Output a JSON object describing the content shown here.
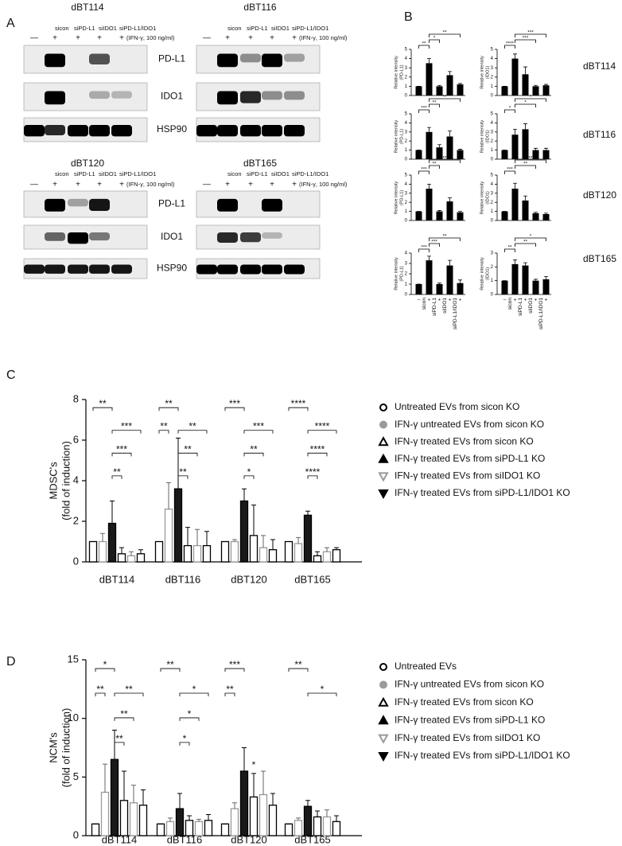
{
  "panel_a": {
    "label": "A",
    "ifn_label": "(IFN-γ, 100 ng/ml)",
    "rows": [
      {
        "proteins": [
          "PD-L1",
          "IDO1",
          "HSP90"
        ],
        "groups": [
          {
            "title": "dBT114",
            "lanes": [
              "sicon",
              "siPD-L1",
              "siIDO1",
              "siPD-L1/IDO1"
            ],
            "treatment": [
              "—",
              "+",
              "+",
              "+",
              "+"
            ]
          },
          {
            "title": "dBT116",
            "lanes": [
              "sicon",
              "siPD-L1",
              "siIDO1",
              "siPD-L1/IDO1"
            ],
            "treatment": [
              "—",
              "+",
              "+",
              "+",
              "+"
            ]
          }
        ]
      },
      {
        "proteins": [
          "PD-L1",
          "IDO1",
          "HSP90"
        ],
        "groups": [
          {
            "title": "dBT120",
            "lanes": [
              "sicon",
              "siPD-L1",
              "siIDO1",
              "siPD-L1/IDO1"
            ],
            "treatment": [
              "—",
              "+",
              "+",
              "+",
              "+"
            ]
          },
          {
            "title": "dBT165",
            "lanes": [
              "sicon",
              "siPD-L1",
              "siIDO1",
              "siPD-L1/IDO1"
            ],
            "treatment": [
              "—",
              "+",
              "+",
              "+",
              "+"
            ]
          }
        ]
      }
    ]
  },
  "panel_b": {
    "label": "B",
    "rows": [
      "dBT114",
      "dBT116",
      "dBT120",
      "dBT165"
    ]
  },
  "chart_data": [
    {
      "type": "bar",
      "ylabel": [
        "Relative intensity",
        "(PD-L1)"
      ],
      "values": [
        1,
        3.5,
        1,
        2.2,
        1.2
      ],
      "errors": [
        0,
        0.5,
        0.1,
        0.4,
        0.1
      ],
      "ylim": [
        0,
        5
      ],
      "yticks": [
        0,
        1,
        2,
        3,
        4,
        5
      ],
      "color": "#000000",
      "brackets": [
        {
          "from": 1,
          "to": 4,
          "label": "**"
        },
        {
          "from": 1,
          "to": 2,
          "label": "*"
        },
        {
          "from": 0,
          "to": 1,
          "label": "**"
        }
      ]
    },
    {
      "type": "bar",
      "ylabel": [
        "Relative intensity",
        "(IDO1)"
      ],
      "values": [
        1,
        4,
        2.3,
        1,
        1.1
      ],
      "errors": [
        0,
        0.5,
        0.8,
        0.1,
        0.1
      ],
      "ylim": [
        0,
        5
      ],
      "yticks": [
        0,
        1,
        2,
        3,
        4,
        5
      ],
      "color": "#000000",
      "brackets": [
        {
          "from": 1,
          "to": 4,
          "label": "***"
        },
        {
          "from": 1,
          "to": 3,
          "label": "***"
        },
        {
          "from": 0,
          "to": 1,
          "label": "****"
        }
      ]
    },
    {
      "type": "bar",
      "ylabel": [
        "Relative intensity",
        "(PD-L1)"
      ],
      "values": [
        1,
        3,
        1.3,
        2.5,
        1
      ],
      "errors": [
        0,
        0.5,
        0.3,
        0.6,
        0.1
      ],
      "ylim": [
        0,
        5
      ],
      "yticks": [
        0,
        1,
        2,
        3,
        4,
        5
      ],
      "color": "#000000",
      "brackets": [
        {
          "from": 1,
          "to": 4,
          "label": "**"
        },
        {
          "from": 1,
          "to": 2,
          "label": "**"
        },
        {
          "from": 0,
          "to": 1,
          "label": "***"
        }
      ]
    },
    {
      "type": "bar",
      "ylabel": [
        "Relative intensity",
        "(IDO1)"
      ],
      "values": [
        1,
        2.7,
        3.3,
        1,
        1
      ],
      "errors": [
        0,
        0.6,
        0.6,
        0.2,
        0.2
      ],
      "ylim": [
        0,
        5
      ],
      "yticks": [
        0,
        1,
        2,
        3,
        4,
        5
      ],
      "color": "#000000",
      "brackets": [
        {
          "from": 1,
          "to": 4,
          "label": "*"
        },
        {
          "from": 1,
          "to": 3,
          "label": "*"
        },
        {
          "from": 0,
          "to": 1,
          "label": "*"
        }
      ]
    },
    {
      "type": "bar",
      "ylabel": [
        "Relative intensity",
        "(PD-L1)"
      ],
      "values": [
        1,
        3.5,
        1,
        2.1,
        0.9
      ],
      "errors": [
        0,
        0.5,
        0.1,
        0.4,
        0.1
      ],
      "ylim": [
        0,
        5
      ],
      "yticks": [
        0,
        1,
        2,
        3,
        4,
        5
      ],
      "color": "#000000",
      "brackets": [
        {
          "from": 1,
          "to": 4,
          "label": "**"
        },
        {
          "from": 1,
          "to": 2,
          "label": "**"
        },
        {
          "from": 0,
          "to": 1,
          "label": "***"
        }
      ]
    },
    {
      "type": "bar",
      "ylabel": [
        "Relative intensity",
        "(IDO1)"
      ],
      "values": [
        1,
        3.5,
        2.2,
        0.8,
        0.7
      ],
      "errors": [
        0,
        0.6,
        0.5,
        0.1,
        0.1
      ],
      "ylim": [
        0,
        5
      ],
      "yticks": [
        0,
        1,
        2,
        3,
        4,
        5
      ],
      "color": "#000000",
      "brackets": [
        {
          "from": 1,
          "to": 4,
          "label": "**"
        },
        {
          "from": 1,
          "to": 3,
          "label": "**"
        },
        {
          "from": 0,
          "to": 1,
          "label": "***"
        }
      ]
    },
    {
      "type": "bar",
      "ylabel": [
        "Relative intensity",
        "(PD-L1)"
      ],
      "categories": [
        null,
        "sicon",
        "siPD-L1",
        "siIDO1",
        "siPD-L1/IDO1"
      ],
      "treatment": [
        "–",
        "+",
        "+",
        "+",
        "+"
      ],
      "values": [
        1,
        3.3,
        1,
        2.8,
        1.1
      ],
      "errors": [
        0,
        0.4,
        0.1,
        0.5,
        0.3
      ],
      "ylim": [
        0,
        4
      ],
      "yticks": [
        0,
        1,
        2,
        3,
        4
      ],
      "color": "#000000",
      "brackets": [
        {
          "from": 1,
          "to": 4,
          "label": "**"
        },
        {
          "from": 1,
          "to": 2,
          "label": "***"
        },
        {
          "from": 0,
          "to": 1,
          "label": "***"
        }
      ]
    },
    {
      "type": "bar",
      "ylabel": [
        "Relative intensity",
        "(IDO1)"
      ],
      "categories": [
        null,
        "sicon",
        "siPD-L1",
        "siIDO1",
        "siPD-L1/IDO1"
      ],
      "treatment": [
        "–",
        "+",
        "+",
        "+",
        "+"
      ],
      "values": [
        1,
        2.2,
        2.1,
        1,
        1.1
      ],
      "errors": [
        0,
        0.3,
        0.2,
        0.1,
        0.2
      ],
      "ylim": [
        0,
        3
      ],
      "yticks": [
        0,
        1,
        2,
        3
      ],
      "color": "#000000",
      "brackets": [
        {
          "from": 1,
          "to": 4,
          "label": "*"
        },
        {
          "from": 1,
          "to": 3,
          "label": "**"
        },
        {
          "from": 0,
          "to": 1,
          "label": "**"
        }
      ]
    },
    {
      "type": "grouped-bar",
      "panel": "C",
      "ylabel": [
        "MDSC's",
        "(fold of induction)"
      ],
      "categories": [
        "dBT114",
        "dBT116",
        "dBT120",
        "dBT165"
      ],
      "ylim": [
        0,
        8
      ],
      "yticks": [
        0,
        2,
        4,
        6,
        8
      ],
      "series": [
        {
          "name": "Untreated EVs from sicon KO",
          "marker": "circle-open",
          "color": "#000000",
          "fill": "#ffffff",
          "values": [
            1,
            1,
            1,
            1
          ],
          "errors": [
            0,
            0,
            0,
            0
          ]
        },
        {
          "name": "IFN-γ untreated EVs from sicon KO",
          "marker": "circle",
          "color": "#9a9a9a",
          "fill": "#ffffff",
          "values": [
            1,
            2.6,
            1,
            0.9
          ],
          "errors": [
            0.4,
            1.3,
            0.1,
            0.3
          ]
        },
        {
          "name": "IFN-γ treated EVs from sicon KO",
          "marker": "triangle-open",
          "color": "#000000",
          "fill": "#1a1a1a",
          "values": [
            1.9,
            3.6,
            3,
            2.3
          ],
          "errors": [
            1.1,
            2.5,
            0.6,
            0.2
          ]
        },
        {
          "name": "IFN-γ treated EVs from siPD-L1 KO",
          "marker": "triangle",
          "color": "#000000",
          "fill": "#ffffff",
          "values": [
            0.4,
            0.8,
            1.3,
            0.3
          ],
          "errors": [
            0.3,
            0.9,
            1.5,
            0.2
          ]
        },
        {
          "name": "IFN-γ treated EVs from siIDO1 KO",
          "marker": "triangle-down-open",
          "color": "#9a9a9a",
          "fill": "#ffffff",
          "values": [
            0.3,
            0.8,
            0.7,
            0.5
          ],
          "errors": [
            0.2,
            0.8,
            0.6,
            0.2
          ]
        },
        {
          "name": "IFN-γ treated EVs from siPD-L1/IDO1 KO",
          "marker": "triangle-down",
          "color": "#000000",
          "fill": "#ffffff",
          "values": [
            0.4,
            0.8,
            0.6,
            0.6
          ],
          "errors": [
            0.2,
            0.7,
            0.5,
            0.1
          ]
        }
      ],
      "brackets": [
        {
          "group": 0,
          "from": 0,
          "to": 2,
          "label": "**"
        },
        {
          "group": 0,
          "from": 2,
          "to": 5,
          "label": "***"
        },
        {
          "group": 0,
          "from": 2,
          "to": 4,
          "label": "***"
        },
        {
          "group": 0,
          "from": 2,
          "to": 3,
          "label": "**"
        },
        {
          "group": 1,
          "from": 0,
          "to": 2,
          "label": "**"
        },
        {
          "group": 1,
          "from": 0,
          "to": 1,
          "label": "**"
        },
        {
          "group": 1,
          "from": 2,
          "to": 5,
          "label": "**"
        },
        {
          "group": 1,
          "from": 2,
          "to": 4,
          "label": "**"
        },
        {
          "group": 1,
          "from": 2,
          "to": 3,
          "label": "**"
        },
        {
          "group": 2,
          "from": 0,
          "to": 2,
          "label": "***"
        },
        {
          "group": 2,
          "from": 2,
          "to": 5,
          "label": "***"
        },
        {
          "group": 2,
          "from": 2,
          "to": 4,
          "label": "**"
        },
        {
          "group": 2,
          "from": 2,
          "to": 3,
          "label": "*"
        },
        {
          "group": 3,
          "from": 0,
          "to": 2,
          "label": "****"
        },
        {
          "group": 3,
          "from": 2,
          "to": 5,
          "label": "****"
        },
        {
          "group": 3,
          "from": 2,
          "to": 4,
          "label": "****"
        },
        {
          "group": 3,
          "from": 2,
          "to": 3,
          "label": "****"
        }
      ]
    },
    {
      "type": "grouped-bar",
      "panel": "D",
      "ylabel": [
        "NCM's",
        "(fold of induction)"
      ],
      "categories": [
        "dBT114",
        "dBT116",
        "dBT120",
        "dBT165"
      ],
      "ylim": [
        0,
        15
      ],
      "yticks": [
        0,
        5,
        10,
        15
      ],
      "series": [
        {
          "name": "Untreated EVs",
          "marker": "circle-open",
          "color": "#000000",
          "fill": "#ffffff",
          "values": [
            1,
            1,
            1,
            1
          ],
          "errors": [
            0,
            0,
            0,
            0
          ]
        },
        {
          "name": "IFN-γ untreated EVs from sicon KO",
          "marker": "circle",
          "color": "#9a9a9a",
          "fill": "#ffffff",
          "values": [
            3.7,
            1.2,
            2.3,
            1.3
          ],
          "errors": [
            2.4,
            0.3,
            0.5,
            0.2
          ]
        },
        {
          "name": "IFN-γ treated EVs from sicon KO",
          "marker": "triangle-open",
          "color": "#000000",
          "fill": "#1a1a1a",
          "values": [
            6.5,
            2.3,
            5.5,
            2.5
          ],
          "errors": [
            2.5,
            1.3,
            2,
            0.5
          ]
        },
        {
          "name": "IFN-γ treated EVs from siPD-L1 KO",
          "marker": "triangle",
          "color": "#000000",
          "fill": "#ffffff",
          "values": [
            3,
            1.3,
            3.3,
            1.6
          ],
          "errors": [
            2.5,
            0.4,
            2,
            0.5
          ]
        },
        {
          "name": "IFN-γ treated EVs from siIDO1 KO",
          "marker": "triangle-down-open",
          "color": "#9a9a9a",
          "fill": "#ffffff",
          "values": [
            2.8,
            1.2,
            3.5,
            1.6
          ],
          "errors": [
            1.5,
            0.2,
            2,
            0.6
          ]
        },
        {
          "name": "IFN-γ treated EVs from siPD-L1/IDO1 KO",
          "marker": "triangle-down",
          "color": "#000000",
          "fill": "#ffffff",
          "values": [
            2.6,
            1.3,
            2.6,
            1.2
          ],
          "errors": [
            1.3,
            0.5,
            1,
            0.5
          ]
        }
      ],
      "brackets": [
        {
          "group": 0,
          "from": 0,
          "to": 2,
          "label": "*"
        },
        {
          "group": 0,
          "from": 0,
          "to": 1,
          "label": "**"
        },
        {
          "group": 0,
          "from": 2,
          "to": 5,
          "label": "**"
        },
        {
          "group": 0,
          "from": 2,
          "to": 4,
          "label": "**"
        },
        {
          "group": 0,
          "from": 2,
          "to": 3,
          "label": "**"
        },
        {
          "group": 1,
          "from": 0,
          "to": 2,
          "label": "**"
        },
        {
          "group": 1,
          "from": 2,
          "to": 5,
          "label": "*"
        },
        {
          "group": 1,
          "from": 2,
          "to": 4,
          "label": "*"
        },
        {
          "group": 1,
          "from": 2,
          "to": 3,
          "label": "*"
        },
        {
          "group": 2,
          "from": 0,
          "to": 2,
          "label": "***"
        },
        {
          "group": 2,
          "from": 0,
          "to": 1,
          "label": "**"
        },
        {
          "group": 2,
          "from": 3,
          "to": 3,
          "label": "*"
        },
        {
          "group": 3,
          "from": 0,
          "to": 2,
          "label": "**"
        },
        {
          "group": 3,
          "from": 2,
          "to": 5,
          "label": "*"
        }
      ]
    }
  ]
}
